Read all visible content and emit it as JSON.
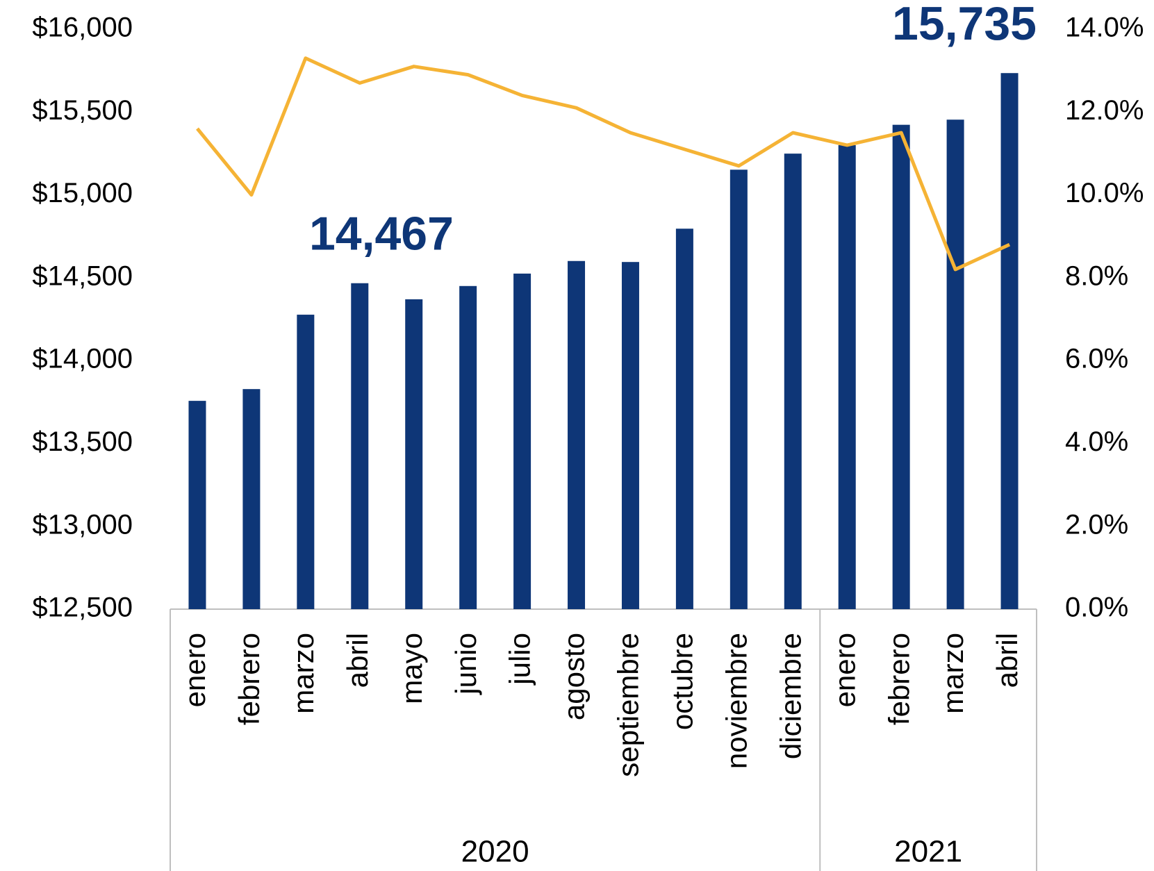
{
  "chart_data": {
    "type": "bar-line",
    "groups": [
      {
        "label": "2020",
        "months": [
          "enero",
          "febrero",
          "marzo",
          "abril",
          "mayo",
          "junio",
          "julio",
          "agosto",
          "septiembre",
          "octubre",
          "noviembre",
          "diciembre"
        ]
      },
      {
        "label": "2021",
        "months": [
          "enero",
          "febrero",
          "marzo",
          "abril"
        ]
      }
    ],
    "series": [
      {
        "type": "bar",
        "color": "#0e3677",
        "axis": "y",
        "values": [
          13757,
          13828,
          14277,
          14467,
          14370,
          14450,
          14525,
          14601,
          14595,
          14796,
          15152,
          15249,
          15300,
          15423,
          15454,
          15735
        ],
        "value_labels": [
          null,
          null,
          null,
          "14,467",
          null,
          null,
          null,
          null,
          null,
          null,
          null,
          null,
          null,
          null,
          null,
          "15,735"
        ]
      },
      {
        "type": "line",
        "color": "#f5b335",
        "axis": "y2",
        "values": [
          11.6,
          10.0,
          13.3,
          12.7,
          13.1,
          12.9,
          12.4,
          12.1,
          11.5,
          11.1,
          10.7,
          11.5,
          11.2,
          11.5,
          8.2,
          8.8
        ]
      }
    ],
    "ylim": [
      12500,
      16000
    ],
    "yticks": [
      {
        "value": 12500,
        "label": "$12,500"
      },
      {
        "value": 13000,
        "label": "$13,000"
      },
      {
        "value": 13500,
        "label": "$13,500"
      },
      {
        "value": 14000,
        "label": "$14,000"
      },
      {
        "value": 14500,
        "label": "$14,500"
      },
      {
        "value": 15000,
        "label": "$15,000"
      },
      {
        "value": 15500,
        "label": "$15,500"
      },
      {
        "value": 16000,
        "label": "$16,000"
      }
    ],
    "y2lim": [
      0,
      14
    ],
    "y2ticks": [
      {
        "value": 0,
        "label": "0.0%"
      },
      {
        "value": 2,
        "label": "2.0%"
      },
      {
        "value": 4,
        "label": "4.0%"
      },
      {
        "value": 6,
        "label": "6.0%"
      },
      {
        "value": 8,
        "label": "8.0%"
      },
      {
        "value": 10,
        "label": "10.0%"
      },
      {
        "value": 12,
        "label": "12.0%"
      },
      {
        "value": 14,
        "label": "14.0%"
      }
    ]
  }
}
